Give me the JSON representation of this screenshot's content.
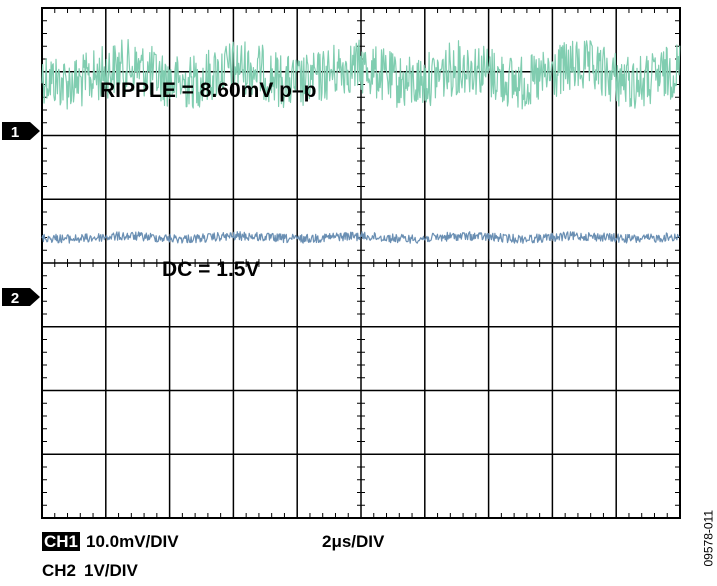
{
  "chart_data": {
    "type": "line",
    "title": "",
    "xlabel": "",
    "ylabel": "",
    "grid": true,
    "divisions": {
      "horizontal": 10,
      "vertical": 8
    },
    "x_range_us": [
      0,
      20
    ],
    "series": [
      {
        "name": "1",
        "color": "#80cdb0",
        "scale_mV_per_div": 10.0,
        "baseline_div_from_top": 1.05,
        "ripple_mV_pp": 8.6,
        "annotation": "RIPPLE = 8.60mV p–p"
      },
      {
        "name": "2",
        "color": "#6a8fb3",
        "scale_V_per_div": 1,
        "baseline_div_from_top": 3.6,
        "dc_V": 1.5,
        "annotation": "DC = 1.5V"
      }
    ]
  },
  "footer": {
    "ch1_label": "CH1",
    "ch1_scale": "10.0mV/DIV",
    "timebase": "2μs/DIV",
    "ch2_label": "CH2",
    "ch2_scale": "1V/DIV"
  },
  "figure_id": "09578-011"
}
